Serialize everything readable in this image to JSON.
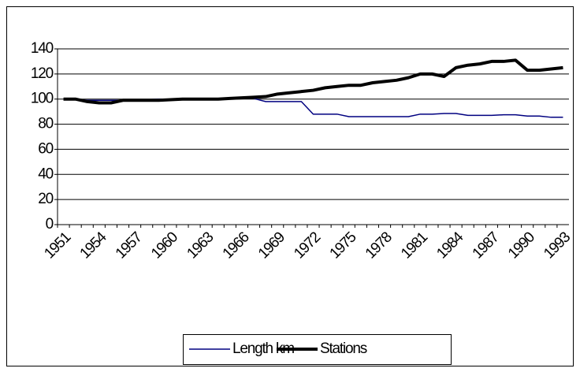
{
  "chart_data": {
    "type": "line",
    "categories": [
      "1951",
      null,
      null,
      "1954",
      null,
      null,
      "1957",
      null,
      null,
      "1960",
      null,
      null,
      "1963",
      null,
      null,
      "1966",
      null,
      null,
      "1969",
      null,
      null,
      "1972",
      null,
      null,
      "1975",
      null,
      null,
      "1978",
      null,
      null,
      "1981",
      null,
      null,
      "1984",
      null,
      null,
      "1987",
      null,
      null,
      "1990",
      null,
      null,
      "1993"
    ],
    "series": [
      {
        "name": "Length km",
        "color": "#000080",
        "values": [
          100,
          100,
          99,
          99,
          99,
          99,
          99.5,
          99.5,
          100,
          100,
          100,
          100,
          100,
          100,
          100,
          100.5,
          100.5,
          98,
          98,
          98,
          98,
          88,
          88,
          88,
          86,
          86,
          86,
          86,
          86,
          86,
          88,
          88,
          88.5,
          88.5,
          87,
          87,
          87,
          87.5,
          87.5,
          86.5,
          86.5,
          85.5,
          85.5
        ]
      },
      {
        "name": "Stations",
        "color": "#000000",
        "values": [
          100,
          100,
          98,
          97,
          97,
          99,
          99,
          99,
          99,
          99.5,
          100,
          100,
          100,
          100,
          100.5,
          101,
          101.5,
          102,
          104,
          105,
          106,
          107,
          109,
          110,
          111,
          111,
          113,
          114,
          115,
          117,
          120,
          120,
          118,
          125,
          127,
          128,
          130,
          130,
          131,
          123,
          123,
          124,
          125
        ]
      }
    ],
    "ylim": [
      0,
      140
    ],
    "yticks": [
      0,
      20,
      40,
      60,
      80,
      100,
      120,
      140
    ],
    "grid": true,
    "legend": "bottom"
  }
}
